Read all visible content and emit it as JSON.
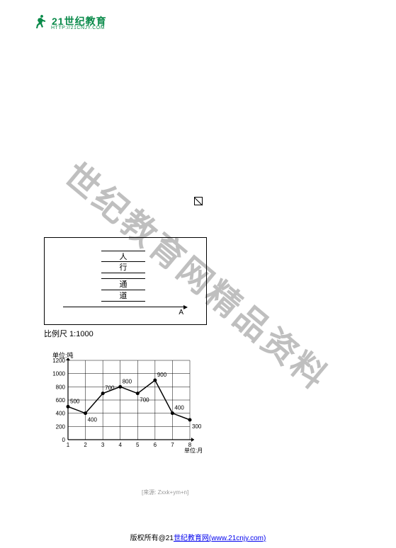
{
  "logo": {
    "brand": "21",
    "suffix": "世纪教育",
    "sub": "HTTP://21CNJY.COM"
  },
  "watermark": "世纪教育网精品资料",
  "scale_label": "比例尺 1:1000",
  "fig1": {
    "rows": [
      "人",
      "行",
      "通",
      "道"
    ],
    "point": "A"
  },
  "chart": {
    "type": "line",
    "ylabel": "单位:吨",
    "xlabel": "单位:月",
    "yticks": [
      0,
      200,
      400,
      600,
      800,
      1000,
      1200
    ],
    "xticks": [
      "1",
      "2",
      "3",
      "4",
      "5",
      "6",
      "7",
      "8"
    ],
    "grid_color": "#000",
    "bg": "#fff",
    "values": [
      500,
      400,
      700,
      800,
      700,
      900,
      400,
      300
    ],
    "labels": [
      "500",
      "400",
      "700",
      "800",
      "700",
      "900",
      "400",
      "300"
    ]
  },
  "source": "[来源: Zxxk+ym+n]",
  "footer": {
    "pre": "版权所有@21",
    "link": "世纪教育网(www.21cnjy.com)"
  }
}
